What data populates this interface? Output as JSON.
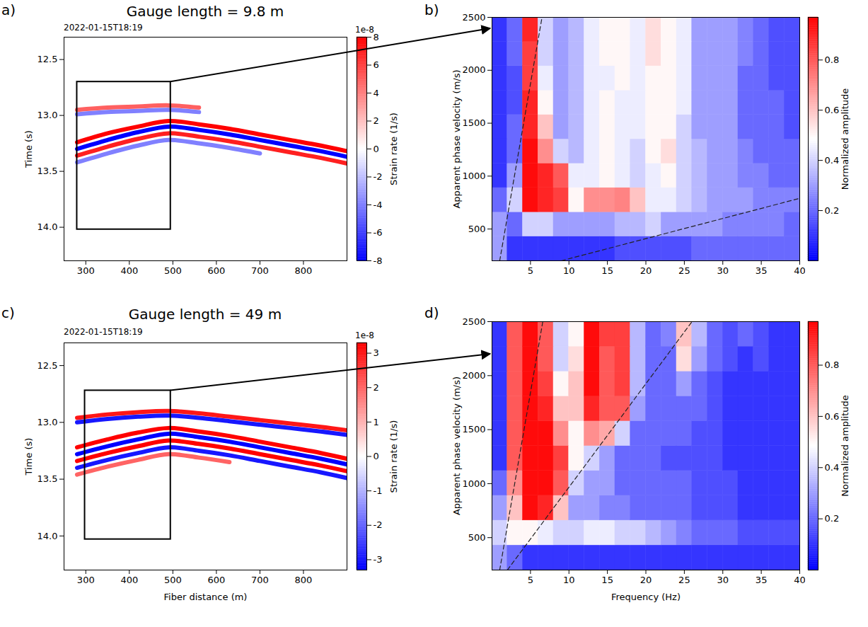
{
  "chart_data": [
    {
      "type": "waterfall",
      "panel": "a)",
      "title": "Gauge length = 9.8 m",
      "subtitle": "2022-01-15T18:19",
      "y_label": "Time (s)",
      "xlim": [
        250,
        900
      ],
      "xticks": [
        300,
        400,
        500,
        600,
        700,
        800
      ],
      "ylim": [
        14.3,
        12.3
      ],
      "yticks": [
        12.5,
        {
          "value": 13,
          "label": "13.0"
        },
        13.5,
        {
          "value": 14,
          "label": "14.0"
        }
      ],
      "x": [
        280,
        350,
        420,
        490,
        560,
        630,
        700,
        770,
        840,
        900
      ],
      "series": [
        {
          "amplitude": 5,
          "values": [
            12.95,
            12.93,
            12.92,
            12.91,
            12.93,
            null,
            null,
            null,
            null,
            null
          ]
        },
        {
          "amplitude": -4,
          "values": [
            12.99,
            12.97,
            12.96,
            12.95,
            12.97,
            null,
            null,
            null,
            null,
            null
          ]
        },
        {
          "amplitude": 8,
          "values": [
            13.24,
            13.16,
            13.1,
            13.05,
            13.08,
            13.12,
            13.17,
            13.22,
            13.27,
            13.32
          ]
        },
        {
          "amplitude": -8,
          "values": [
            13.3,
            13.22,
            13.15,
            13.1,
            13.13,
            13.17,
            13.22,
            13.27,
            13.32,
            13.37
          ]
        },
        {
          "amplitude": 7,
          "values": [
            13.36,
            13.28,
            13.21,
            13.16,
            13.19,
            13.23,
            13.28,
            13.33,
            13.38,
            13.43
          ]
        },
        {
          "amplitude": -4,
          "values": [
            13.42,
            13.34,
            13.27,
            13.22,
            13.25,
            13.29,
            13.34,
            null,
            null,
            null
          ]
        }
      ],
      "box": {
        "x": [
          280,
          495
        ],
        "y": [
          12.7,
          14.02
        ]
      },
      "colorbar": {
        "range": [
          -8,
          8
        ],
        "ticks": [
          -8,
          -6,
          -4,
          -2,
          0,
          2,
          4,
          6,
          8
        ],
        "label": "Strain rate (1/s)",
        "exponent": "1e-8"
      }
    },
    {
      "type": "heatmap",
      "panel": "b)",
      "y_label": "Apparent phase velocity (m/s)",
      "xlim": [
        0,
        40
      ],
      "xticks": [
        5,
        10,
        15,
        20,
        25,
        30,
        35,
        40
      ],
      "ylim": [
        200,
        2500
      ],
      "yticks": [
        500,
        1000,
        1500,
        2000,
        2500
      ],
      "cells": {
        "x_edges": [
          0,
          2,
          4,
          6,
          8,
          10,
          12,
          14,
          16,
          18,
          20,
          22,
          24,
          26,
          28,
          30,
          32,
          34,
          36,
          38,
          40
        ],
        "y_edges": [
          200,
          430,
          660,
          890,
          1120,
          1350,
          1580,
          1810,
          2040,
          2270,
          2500
        ],
        "values": [
          [
            0.3,
            0.1,
            0.1,
            0.1,
            0.1,
            0.1,
            0.1,
            0.1,
            0.15,
            0.15,
            0.15,
            0.15,
            0.15,
            0.2,
            0.2,
            0.2,
            0.2,
            0.2,
            0.2,
            0.2
          ],
          [
            0.3,
            0.2,
            0.4,
            0.4,
            0.3,
            0.3,
            0.3,
            0.3,
            0.35,
            0.35,
            0.4,
            0.3,
            0.3,
            0.3,
            0.3,
            0.25,
            0.25,
            0.25,
            0.25,
            0.2
          ],
          [
            0.2,
            0.4,
            0.95,
            0.9,
            0.85,
            0.5,
            0.7,
            0.7,
            0.72,
            0.6,
            0.45,
            0.45,
            0.4,
            0.35,
            0.3,
            0.3,
            0.3,
            0.25,
            0.25,
            0.25
          ],
          [
            0.1,
            0.3,
            0.95,
            0.9,
            0.8,
            0.45,
            0.45,
            0.5,
            0.45,
            0.4,
            0.45,
            0.5,
            0.4,
            0.35,
            0.3,
            0.3,
            0.25,
            0.25,
            0.2,
            0.2
          ],
          [
            0.1,
            0.2,
            0.95,
            0.7,
            0.4,
            0.35,
            0.45,
            0.5,
            0.45,
            0.4,
            0.5,
            0.55,
            0.4,
            0.35,
            0.3,
            0.3,
            0.25,
            0.2,
            0.2,
            0.2
          ],
          [
            0.1,
            0.2,
            0.9,
            0.6,
            0.3,
            0.35,
            0.45,
            0.5,
            0.45,
            0.45,
            0.5,
            0.5,
            0.4,
            0.3,
            0.3,
            0.3,
            0.2,
            0.2,
            0.2,
            0.15
          ],
          [
            0.1,
            0.15,
            0.9,
            0.5,
            0.3,
            0.35,
            0.45,
            0.5,
            0.45,
            0.45,
            0.5,
            0.5,
            0.45,
            0.3,
            0.3,
            0.3,
            0.2,
            0.2,
            0.2,
            0.15
          ],
          [
            0.1,
            0.15,
            0.85,
            0.45,
            0.3,
            0.35,
            0.45,
            0.45,
            0.5,
            0.45,
            0.5,
            0.5,
            0.45,
            0.3,
            0.3,
            0.3,
            0.2,
            0.2,
            0.15,
            0.15
          ],
          [
            0.1,
            0.2,
            0.85,
            0.4,
            0.3,
            0.35,
            0.45,
            0.5,
            0.5,
            0.45,
            0.55,
            0.5,
            0.45,
            0.3,
            0.3,
            0.3,
            0.25,
            0.2,
            0.15,
            0.15
          ],
          [
            0.1,
            0.2,
            0.9,
            0.4,
            0.3,
            0.35,
            0.45,
            0.5,
            0.5,
            0.45,
            0.55,
            0.5,
            0.45,
            0.3,
            0.3,
            0.3,
            0.25,
            0.2,
            0.15,
            0.15
          ]
        ]
      },
      "lines": [
        {
          "x": [
            1,
            6.5
          ],
          "y": [
            200,
            2500
          ],
          "line_style": "dashed"
        },
        {
          "x": [
            9,
            40
          ],
          "y": [
            200,
            790
          ],
          "line_style": "dashed"
        }
      ],
      "colorbar": {
        "range": [
          0,
          0.97
        ],
        "ticks": [
          0.2,
          0.4,
          0.6,
          0.8
        ],
        "label": "Normalized amplitude"
      }
    },
    {
      "type": "waterfall",
      "panel": "c)",
      "title": "Gauge length = 49 m",
      "subtitle": "2022-01-15T18:19",
      "x_label": "Fiber distance (m)",
      "y_label": "Time (s)",
      "xlim": [
        250,
        900
      ],
      "xticks": [
        300,
        400,
        500,
        600,
        700,
        800
      ],
      "ylim": [
        14.3,
        12.3
      ],
      "yticks": [
        12.5,
        {
          "value": 13,
          "label": "13.0"
        },
        13.5,
        {
          "value": 14,
          "label": "14.0"
        }
      ],
      "x": [
        280,
        350,
        420,
        490,
        560,
        630,
        700,
        770,
        840,
        900
      ],
      "series": [
        {
          "amplitude": 3,
          "values": [
            12.96,
            12.93,
            12.91,
            12.9,
            12.92,
            12.95,
            12.98,
            13.01,
            13.04,
            13.07
          ]
        },
        {
          "amplitude": -3,
          "values": [
            13.0,
            12.97,
            12.95,
            12.94,
            12.96,
            12.99,
            13.02,
            13.05,
            13.08,
            13.11
          ]
        },
        {
          "amplitude": 3.3,
          "values": [
            13.22,
            13.15,
            13.09,
            13.05,
            13.08,
            13.12,
            13.17,
            13.22,
            13.27,
            13.32
          ]
        },
        {
          "amplitude": -3.3,
          "values": [
            13.28,
            13.21,
            13.15,
            13.1,
            13.13,
            13.17,
            13.22,
            13.27,
            13.32,
            13.37
          ]
        },
        {
          "amplitude": 3.3,
          "values": [
            13.34,
            13.27,
            13.21,
            13.16,
            13.19,
            13.23,
            13.28,
            13.33,
            13.38,
            13.43
          ]
        },
        {
          "amplitude": -3,
          "values": [
            13.4,
            13.33,
            13.27,
            13.22,
            13.25,
            13.29,
            13.34,
            13.39,
            13.44,
            13.49
          ]
        },
        {
          "amplitude": 2,
          "values": [
            13.46,
            13.39,
            13.33,
            13.28,
            13.31,
            13.35,
            null,
            null,
            null,
            null
          ]
        }
      ],
      "box": {
        "x": [
          298,
          495
        ],
        "y": [
          12.72,
          14.03
        ]
      },
      "colorbar": {
        "range": [
          -3.3,
          3.3
        ],
        "ticks": [
          -3,
          -2,
          -1,
          0,
          1,
          2,
          3
        ],
        "label": "Strain rate (1/s)",
        "exponent": "1e-8"
      }
    },
    {
      "type": "heatmap",
      "panel": "d)",
      "x_label": "Frequency (Hz)",
      "y_label": "Apparent phase velocity (m/s)",
      "xlim": [
        0,
        40
      ],
      "xticks": [
        5,
        10,
        15,
        20,
        25,
        30,
        35,
        40
      ],
      "ylim": [
        200,
        2500
      ],
      "yticks": [
        500,
        1000,
        1500,
        2000,
        2500
      ],
      "cells": {
        "x_edges": [
          0,
          2,
          4,
          6,
          8,
          10,
          12,
          14,
          16,
          18,
          20,
          22,
          24,
          26,
          28,
          30,
          32,
          34,
          36,
          38,
          40
        ],
        "y_edges": [
          200,
          430,
          660,
          890,
          1120,
          1350,
          1580,
          1810,
          2040,
          2270,
          2500
        ],
        "values": [
          [
            0.3,
            0.2,
            0.1,
            0.1,
            0.1,
            0.1,
            0.1,
            0.1,
            0.1,
            0.1,
            0.1,
            0.1,
            0.1,
            0.1,
            0.1,
            0.1,
            0.1,
            0.1,
            0.1,
            0.1
          ],
          [
            0.4,
            0.5,
            0.5,
            0.45,
            0.4,
            0.4,
            0.45,
            0.45,
            0.4,
            0.4,
            0.35,
            0.3,
            0.25,
            0.2,
            0.2,
            0.2,
            0.15,
            0.15,
            0.15,
            0.15
          ],
          [
            0.3,
            0.6,
            0.95,
            0.9,
            0.6,
            0.3,
            0.3,
            0.25,
            0.25,
            0.2,
            0.2,
            0.2,
            0.2,
            0.15,
            0.15,
            0.15,
            0.1,
            0.1,
            0.1,
            0.1
          ],
          [
            0.2,
            0.7,
            0.95,
            0.95,
            0.8,
            0.4,
            0.3,
            0.3,
            0.2,
            0.2,
            0.2,
            0.2,
            0.2,
            0.15,
            0.15,
            0.15,
            0.1,
            0.1,
            0.1,
            0.1
          ],
          [
            0.1,
            0.8,
            0.95,
            0.95,
            0.85,
            0.5,
            0.4,
            0.3,
            0.2,
            0.2,
            0.2,
            0.15,
            0.15,
            0.15,
            0.15,
            0.1,
            0.1,
            0.1,
            0.1,
            0.1
          ],
          [
            0.1,
            0.8,
            0.95,
            0.95,
            0.7,
            0.5,
            0.7,
            0.65,
            0.4,
            0.2,
            0.2,
            0.2,
            0.2,
            0.15,
            0.15,
            0.1,
            0.1,
            0.1,
            0.1,
            0.1
          ],
          [
            0.1,
            0.8,
            0.95,
            0.9,
            0.6,
            0.6,
            0.9,
            0.8,
            0.8,
            0.3,
            0.2,
            0.2,
            0.2,
            0.2,
            0.15,
            0.1,
            0.1,
            0.1,
            0.1,
            0.1
          ],
          [
            0.1,
            0.8,
            0.95,
            0.85,
            0.5,
            0.6,
            0.95,
            0.8,
            0.85,
            0.35,
            0.2,
            0.2,
            0.3,
            0.2,
            0.15,
            0.1,
            0.1,
            0.1,
            0.1,
            0.1
          ],
          [
            0.1,
            0.8,
            0.95,
            0.8,
            0.4,
            0.55,
            0.95,
            0.8,
            0.85,
            0.35,
            0.2,
            0.2,
            0.55,
            0.3,
            0.2,
            0.15,
            0.1,
            0.15,
            0.1,
            0.1
          ],
          [
            0.1,
            0.8,
            0.95,
            0.8,
            0.4,
            0.5,
            0.95,
            0.85,
            0.85,
            0.35,
            0.2,
            0.25,
            0.6,
            0.35,
            0.2,
            0.15,
            0.2,
            0.15,
            0.1,
            0.1
          ]
        ]
      },
      "lines": [
        {
          "x": [
            1,
            6.6
          ],
          "y": [
            200,
            2500
          ],
          "line_style": "dashed"
        },
        {
          "x": [
            2,
            26
          ],
          "y": [
            200,
            2500
          ],
          "line_style": "dashed"
        }
      ],
      "colorbar": {
        "range": [
          0,
          0.97
        ],
        "ticks": [
          0.2,
          0.4,
          0.6,
          0.8
        ],
        "label": "Normalized amplitude"
      }
    }
  ]
}
